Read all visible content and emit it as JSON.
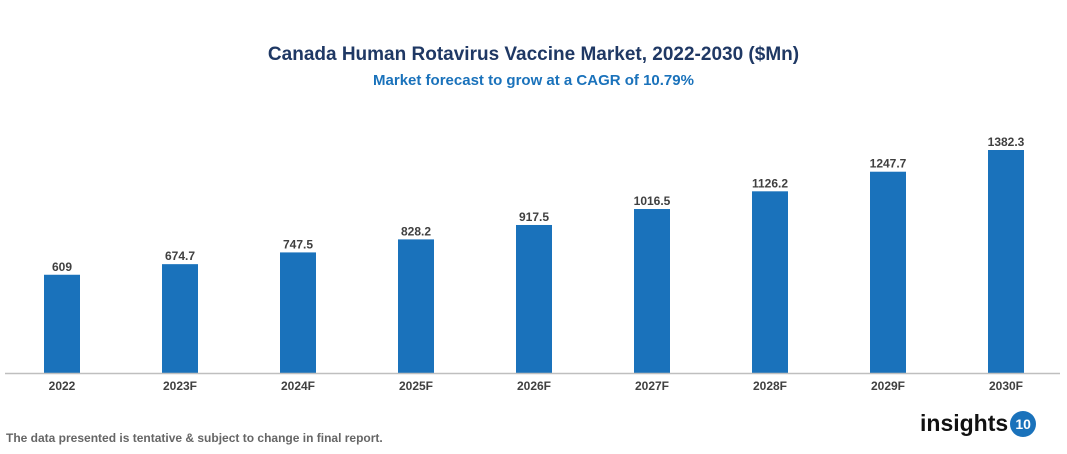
{
  "chart_data": {
    "type": "bar",
    "title": "Canada Human Rotavirus Vaccine Market, 2022-2030 ($Mn)",
    "subtitle": "Market forecast to grow at a CAGR of 10.79%",
    "categories": [
      "2022",
      "2023F",
      "2024F",
      "2025F",
      "2026F",
      "2027F",
      "2028F",
      "2029F",
      "2030F"
    ],
    "values": [
      609,
      674.7,
      747.5,
      828.2,
      917.5,
      1016.5,
      1126.2,
      1247.7,
      1382.3
    ],
    "data_labels": [
      "609",
      "674.7",
      "747.5",
      "828.2",
      "917.5",
      "1016.5",
      "1126.2",
      "1247.7",
      "1382.3"
    ],
    "xlabel": "",
    "ylabel": "",
    "ylim": [
      0,
      1382.3
    ],
    "grid": false,
    "bar_color": "#1a72bb"
  },
  "footer": {
    "note": "The data presented is tentative & subject to change in final report.",
    "logo_text": "insights",
    "logo_badge": "10"
  }
}
